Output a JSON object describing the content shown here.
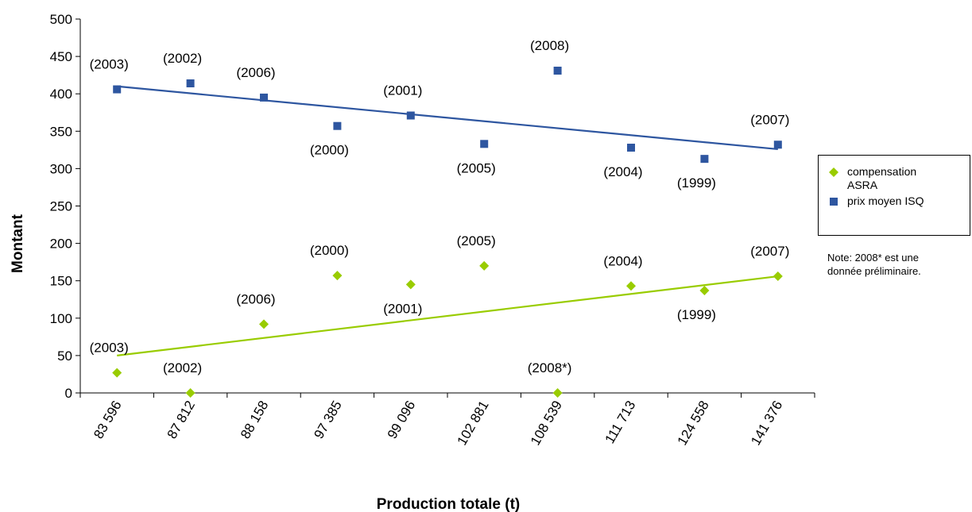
{
  "chart_data": {
    "type": "scatter",
    "xlabel": "Production totale (t)",
    "ylabel": "Montant",
    "categories": [
      "83 596",
      "87 812",
      "88 158",
      "97 385",
      "99 096",
      "102 881",
      "108 539",
      "111 713",
      "124 558",
      "141 376"
    ],
    "ylim": [
      0,
      500
    ],
    "yticks": [
      0,
      50,
      100,
      150,
      200,
      250,
      300,
      350,
      400,
      450,
      500
    ],
    "grid": false,
    "legend_position": "right",
    "series": [
      {
        "name": "compensation ASRA",
        "marker": "diamond",
        "color": "#99cc00",
        "values": [
          27,
          0,
          92,
          157,
          145,
          170,
          0,
          143,
          137,
          156
        ],
        "point_labels": [
          "(2003)",
          "(2002)",
          "(2006)",
          "(2000)",
          "(2001)",
          "(2005)",
          "(2008*)",
          "(2004)",
          "(1999)",
          "(2007)"
        ],
        "trendline": [
          50,
          156
        ]
      },
      {
        "name": "prix moyen ISQ",
        "marker": "square",
        "color": "#2e56a0",
        "values": [
          406,
          414,
          395,
          357,
          371,
          333,
          431,
          328,
          313,
          332
        ],
        "point_labels": [
          "(2003)",
          "(2002)",
          "(2006)",
          "(2000)",
          "(2001)",
          "(2005)",
          "(2008)",
          "(2004)",
          "(1999)",
          "(2007)"
        ],
        "trendline": [
          410,
          326
        ]
      }
    ]
  },
  "legend": {
    "items": [
      {
        "label_line1": "compensation",
        "label_line2": "ASRA"
      },
      {
        "label_line1": "prix moyen ISQ",
        "label_line2": ""
      }
    ]
  },
  "note": {
    "line1": "Note: 2008* est une",
    "line2": "donnée préliminaire."
  }
}
